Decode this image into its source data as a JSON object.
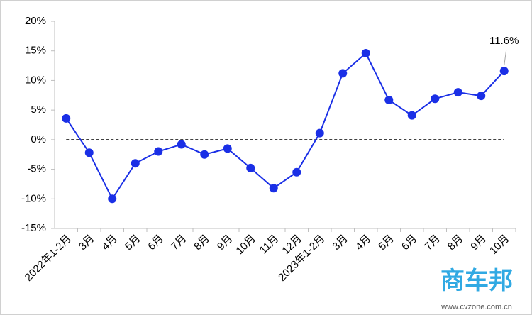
{
  "chart_data": {
    "type": "line",
    "categories": [
      "2022年1-2月",
      "3月",
      "4月",
      "5月",
      "6月",
      "7月",
      "8月",
      "9月",
      "10月",
      "11月",
      "12月",
      "2023年1-2月",
      "3月",
      "4月",
      "5月",
      "6月",
      "7月",
      "8月",
      "9月",
      "10月"
    ],
    "series": [
      {
        "color": "#1a2fe6",
        "values": [
          3.6,
          -2.2,
          -10,
          -4,
          -2,
          -0.8,
          -2.5,
          -1.5,
          -4.8,
          -8.2,
          -5.5,
          1.1,
          11.2,
          14.6,
          6.7,
          4.1,
          6.9,
          8.0,
          7.4,
          11.6
        ]
      }
    ],
    "ylim": [
      -15,
      20
    ],
    "yticks": [
      {
        "value": -15,
        "label": "-15%"
      },
      {
        "value": -10,
        "label": "-10%"
      },
      {
        "value": -5,
        "label": "-5%"
      },
      {
        "value": 0,
        "label": "0%"
      },
      {
        "value": 5,
        "label": "5%"
      },
      {
        "value": 10,
        "label": "10%"
      },
      {
        "value": 15,
        "label": "15%"
      },
      {
        "value": 20,
        "label": "20%"
      }
    ],
    "annotation": "11.6%",
    "watermark": [
      "商车邦",
      "www.cvzone.com.cn"
    ]
  }
}
